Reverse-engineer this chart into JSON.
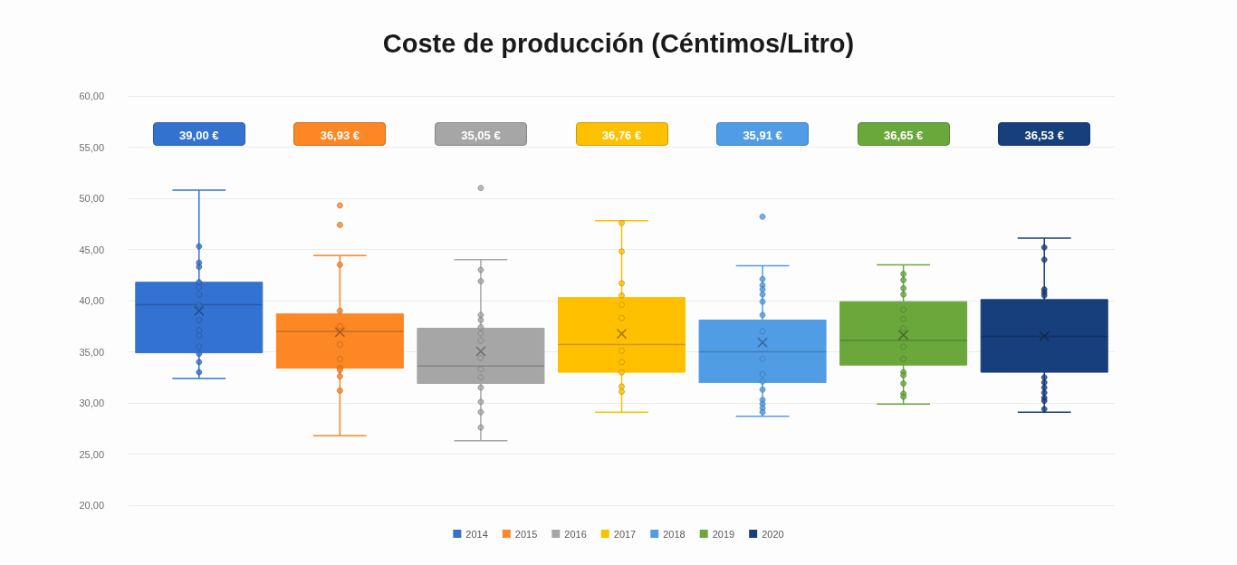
{
  "chart_data": {
    "type": "box",
    "title": "Coste de producción (Céntimos/Litro)",
    "categories": [
      null,
      null,
      null,
      null,
      null,
      null,
      null
    ],
    "tick_labels": "y",
    "legend": "bottom",
    "grid": "y",
    "ylim": [
      20,
      60
    ],
    "yticks": [
      {
        "value": 20,
        "label": "20,00"
      },
      {
        "value": 25,
        "label": "25,00"
      },
      {
        "value": 30,
        "label": "30,00"
      },
      {
        "value": 35,
        "label": "35,00"
      },
      {
        "value": 40,
        "label": "40,00"
      },
      {
        "value": 45,
        "label": "45,00"
      },
      {
        "value": 50,
        "label": "50,00"
      },
      {
        "value": 55,
        "label": "55,00"
      },
      {
        "value": 60,
        "label": "60,00"
      }
    ],
    "series": [
      {
        "name": "2014",
        "color": "#3372d0",
        "value_labels": [
          "39,00 €",
          null,
          null,
          null,
          null,
          null,
          null
        ],
        "boxes": [
          {
            "low": 32.4,
            "q1": 34.9,
            "median": 39.6,
            "q3": 41.8,
            "high": 50.8,
            "mean": 39.0,
            "outliers": [
              45.3,
              43.7,
              43.3,
              41.8,
              41.3,
              40.6,
              39.6,
              38.1,
              37.1,
              36.6,
              35.5,
              34.8,
              34.0,
              33.0
            ]
          },
          null,
          null,
          null,
          null,
          null,
          null
        ]
      },
      {
        "name": "2015",
        "color": "#fd8625",
        "value_labels": [
          null,
          "36,93 €",
          null,
          null,
          null,
          null,
          null
        ],
        "boxes": [
          null,
          {
            "low": 26.8,
            "q1": 33.4,
            "median": 37.0,
            "q3": 38.7,
            "high": 44.4,
            "mean": 36.93,
            "outliers": [
              49.3,
              47.4,
              43.5,
              39.0,
              37.5,
              35.7,
              34.3,
              33.4,
              33.2,
              32.6,
              31.2
            ]
          },
          null,
          null,
          null,
          null,
          null
        ]
      },
      {
        "name": "2016",
        "color": "#a6a6a6",
        "value_labels": [
          null,
          null,
          "35,05 €",
          null,
          null,
          null,
          null
        ],
        "boxes": [
          null,
          null,
          {
            "low": 26.3,
            "q1": 31.9,
            "median": 33.6,
            "q3": 37.3,
            "high": 44.0,
            "mean": 35.05,
            "outliers": [
              51.0,
              43.0,
              41.9,
              38.6,
              38.1,
              37.4,
              36.8,
              36.1,
              34.4,
              33.3,
              32.5,
              31.5,
              30.1,
              29.1,
              27.6
            ]
          },
          null,
          null,
          null,
          null
        ]
      },
      {
        "name": "2017",
        "color": "#ffc000",
        "value_labels": [
          null,
          null,
          null,
          "36,76 €",
          null,
          null,
          null
        ],
        "boxes": [
          null,
          null,
          null,
          {
            "low": 29.1,
            "q1": 33.0,
            "median": 35.7,
            "q3": 40.3,
            "high": 47.8,
            "mean": 36.76,
            "outliers": [
              47.6,
              44.8,
              41.7,
              40.5,
              39.6,
              38.3,
              35.1,
              34.0,
              33.0,
              31.6,
              31.1
            ]
          },
          null,
          null,
          null
        ]
      },
      {
        "name": "2018",
        "color": "#519de5",
        "value_labels": [
          null,
          null,
          null,
          null,
          "35,91 €",
          null,
          null
        ],
        "boxes": [
          null,
          null,
          null,
          null,
          {
            "low": 28.7,
            "q1": 32.0,
            "median": 35.0,
            "q3": 38.1,
            "high": 43.4,
            "mean": 35.91,
            "outliers": [
              48.2,
              42.1,
              41.5,
              41.1,
              40.6,
              39.9,
              38.6,
              37.0,
              34.3,
              32.8,
              32.1,
              31.3,
              30.3,
              29.9,
              29.5,
              29.1
            ]
          },
          null,
          null
        ]
      },
      {
        "name": "2019",
        "color": "#6aa83c",
        "value_labels": [
          null,
          null,
          null,
          null,
          null,
          "36,65 €",
          null
        ],
        "boxes": [
          null,
          null,
          null,
          null,
          null,
          {
            "low": 29.9,
            "q1": 33.7,
            "median": 36.1,
            "q3": 39.9,
            "high": 43.5,
            "mean": 36.65,
            "outliers": [
              42.6,
              42.0,
              41.2,
              40.6,
              39.1,
              38.2,
              37.3,
              35.5,
              34.3,
              33.0,
              32.7,
              31.9,
              30.9,
              30.6
            ]
          },
          null
        ]
      },
      {
        "name": "2020",
        "color": "#173f7c",
        "value_labels": [
          null,
          null,
          null,
          null,
          null,
          null,
          "36,53 €"
        ],
        "boxes": [
          null,
          null,
          null,
          null,
          null,
          null,
          {
            "low": 29.1,
            "q1": 33.0,
            "median": 36.5,
            "q3": 40.1,
            "high": 46.1,
            "mean": 36.53,
            "outliers": [
              45.2,
              44.0,
              41.1,
              40.8,
              40.5,
              32.5,
              32.0,
              31.5,
              31.0,
              30.5,
              30.2,
              29.4
            ]
          }
        ]
      }
    ]
  }
}
